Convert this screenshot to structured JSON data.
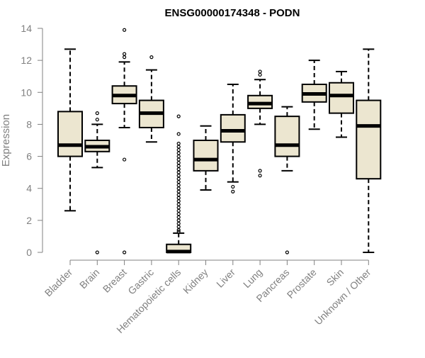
{
  "chart_data": {
    "type": "boxplot",
    "title": "ENSG00000174348 - PODN",
    "xlabel": "",
    "ylabel": "Expression",
    "ylim": [
      0,
      14
    ],
    "yticks": [
      "0",
      "2",
      "4",
      "6",
      "8",
      "10",
      "12",
      "14"
    ],
    "grid": false,
    "colors": {
      "box_fill": "#ece6d0",
      "stroke": "#000000",
      "axis": "#808080",
      "text": "#808080"
    },
    "categories": [
      "Bladder",
      "Brain",
      "Breast",
      "Gastric",
      "Hematopoietic cells",
      "Kidney",
      "Liver",
      "Lung",
      "Pancreas",
      "Prostate",
      "Skin",
      "Unknown / Other"
    ],
    "boxes": [
      {
        "name": "Bladder",
        "whisker_low": 2.6,
        "q1": 6.0,
        "median": 6.7,
        "q3": 8.8,
        "whisker_high": 12.7,
        "outliers": []
      },
      {
        "name": "Brain",
        "whisker_low": 5.3,
        "q1": 6.3,
        "median": 6.6,
        "q3": 7.0,
        "whisker_high": 8.0,
        "outliers": [
          8.7,
          8.3,
          0.0
        ]
      },
      {
        "name": "Breast",
        "whisker_low": 7.8,
        "q1": 9.3,
        "median": 9.8,
        "q3": 10.4,
        "whisker_high": 11.9,
        "outliers": [
          13.9,
          12.4,
          12.2,
          5.8,
          0.0
        ]
      },
      {
        "name": "Gastric",
        "whisker_low": 6.9,
        "q1": 7.8,
        "median": 8.7,
        "q3": 9.5,
        "whisker_high": 11.4,
        "outliers": [
          12.2
        ]
      },
      {
        "name": "Hematopoietic cells",
        "whisker_low": 0.0,
        "q1": 0.0,
        "median": 0.05,
        "q3": 0.5,
        "whisker_high": 1.2,
        "outliers": [
          8.5,
          7.4,
          6.8,
          6.6,
          6.4,
          6.2,
          6.0,
          5.8,
          5.6,
          5.4,
          5.2,
          5.0,
          4.8,
          4.6,
          4.4,
          4.2,
          4.0,
          3.8,
          3.6,
          3.4,
          3.2,
          3.0,
          2.8,
          2.6,
          2.4,
          2.2,
          2.0,
          1.8,
          1.6,
          1.4,
          1.3
        ]
      },
      {
        "name": "Kidney",
        "whisker_low": 3.9,
        "q1": 5.1,
        "median": 5.8,
        "q3": 7.0,
        "whisker_high": 7.9,
        "outliers": []
      },
      {
        "name": "Liver",
        "whisker_low": 4.4,
        "q1": 6.9,
        "median": 7.6,
        "q3": 8.6,
        "whisker_high": 10.5,
        "outliers": [
          4.1,
          3.8
        ]
      },
      {
        "name": "Lung",
        "whisker_low": 8.0,
        "q1": 9.0,
        "median": 9.3,
        "q3": 9.8,
        "whisker_high": 10.8,
        "outliers": [
          11.3,
          11.1,
          5.1,
          4.8
        ]
      },
      {
        "name": "Pancreas",
        "whisker_low": 5.1,
        "q1": 6.0,
        "median": 6.7,
        "q3": 8.5,
        "whisker_high": 9.1,
        "outliers": [
          0.0
        ]
      },
      {
        "name": "Prostate",
        "whisker_low": 7.7,
        "q1": 9.4,
        "median": 9.9,
        "q3": 10.5,
        "whisker_high": 12.0,
        "outliers": []
      },
      {
        "name": "Skin",
        "whisker_low": 7.2,
        "q1": 8.7,
        "median": 9.8,
        "q3": 10.6,
        "whisker_high": 11.3,
        "outliers": []
      },
      {
        "name": "Unknown / Other",
        "whisker_low": 0.0,
        "q1": 4.6,
        "median": 7.9,
        "q3": 9.5,
        "whisker_high": 12.7,
        "outliers": []
      }
    ]
  }
}
